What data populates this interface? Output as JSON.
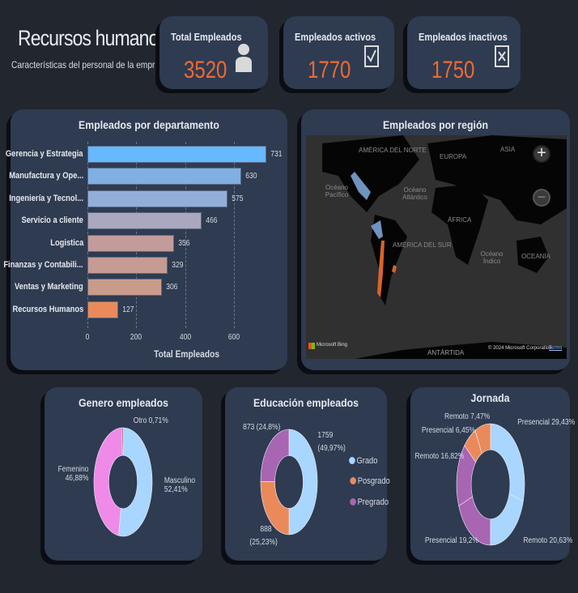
{
  "header": {
    "title": "Recursos humanos",
    "subtitle": "Características del personal de la empresa"
  },
  "kpis": [
    {
      "label": "Total Empleados",
      "value": "3520",
      "icon": "person-icon"
    },
    {
      "label": "Empleados activos",
      "value": "1770",
      "icon": "checkbox-checked-icon"
    },
    {
      "label": "Empleados inactivos",
      "value": "1750",
      "icon": "checkbox-x-icon"
    }
  ],
  "colors": {
    "accent": "#f06a32",
    "card": "#2e3b51",
    "background": "#22262f"
  },
  "chart_data": [
    {
      "type": "bar",
      "title": "Empleados por departamento",
      "categories": [
        "Gerencia y Estrategia",
        "Manufactura y Ope...",
        "Ingeniería y Tecnol...",
        "Servicio a cliente",
        "Logistica",
        "Finanzas y Contabili...",
        "Ventas y Marketing",
        "Recursos Humanos"
      ],
      "values": [
        731,
        630,
        575,
        466,
        356,
        329,
        306,
        127
      ],
      "value_labels": [
        "731",
        "630",
        "575",
        "466",
        "356",
        "329",
        "306",
        "127"
      ],
      "colors": [
        "#66b8ff",
        "#80b0e2",
        "#93afd9",
        "#aaa8bf",
        "#c19c9a",
        "#c59b93",
        "#c99b8b",
        "#ea8a5b"
      ],
      "xlabel": "Total Empleados",
      "xticks": [
        "0",
        "200",
        "400",
        "600"
      ],
      "xlim": [
        0,
        750
      ]
    },
    {
      "type": "pie",
      "title": "Genero empleados",
      "labels": [
        "Masculino",
        "Femenino",
        "Otro"
      ],
      "values": [
        52.41,
        46.88,
        0.71
      ],
      "display": [
        "Masculino 52,41%",
        "Femenino 46,88%",
        "Otro 0,71%"
      ],
      "colors": [
        "#a8d6ff",
        "#f08ae8",
        "#9a3a5a"
      ]
    },
    {
      "type": "pie",
      "title": "Educación empleados",
      "labels": [
        "Grado",
        "Posgrado",
        "Pregrado"
      ],
      "values": [
        1759,
        888,
        873
      ],
      "display": [
        "1759 (49,97%)",
        "888 (25,23%)",
        "873 (24,8%)"
      ],
      "colors": [
        "#a8d6ff",
        "#ea8a5b",
        "#a865b2"
      ],
      "legend": [
        "Grado",
        "Posgrado",
        "Pregrado"
      ]
    },
    {
      "type": "pie",
      "title": "Jornada",
      "labels": [
        "Presencial",
        "Remoto",
        "Presencial",
        "Remoto",
        "Presencial",
        "Remoto"
      ],
      "values": [
        29.43,
        20.63,
        19.2,
        16.82,
        6.45,
        7.47
      ],
      "display": [
        "Presencial 29,43%",
        "Remoto 20,63%",
        "Presencial 19,2%",
        "Remoto 16,82%",
        "Presencial 6,45%",
        "Remoto 7,47%"
      ],
      "colors": [
        "#a8d6ff",
        "#a8d6ff",
        "#a865b2",
        "#a865b2",
        "#ea8a5b",
        "#ea8a5b"
      ]
    }
  ],
  "map": {
    "title": "Empleados por región",
    "labels": [
      "AMÉRICA DEL NORTE",
      "EUROPA",
      "ASIA",
      "Océano Pacífico",
      "Océano Atlántico",
      "ÁFRICA",
      "AMÉRICA DEL SUR",
      "Océano Índico",
      "OCEANÍA",
      "ANTÁRTIDA"
    ],
    "zoom_in": "+",
    "zoom_out": "−",
    "brand": "Microsoft Bing",
    "copyright": "© 2024 Microsoft Corporation",
    "terms": "Terms"
  }
}
